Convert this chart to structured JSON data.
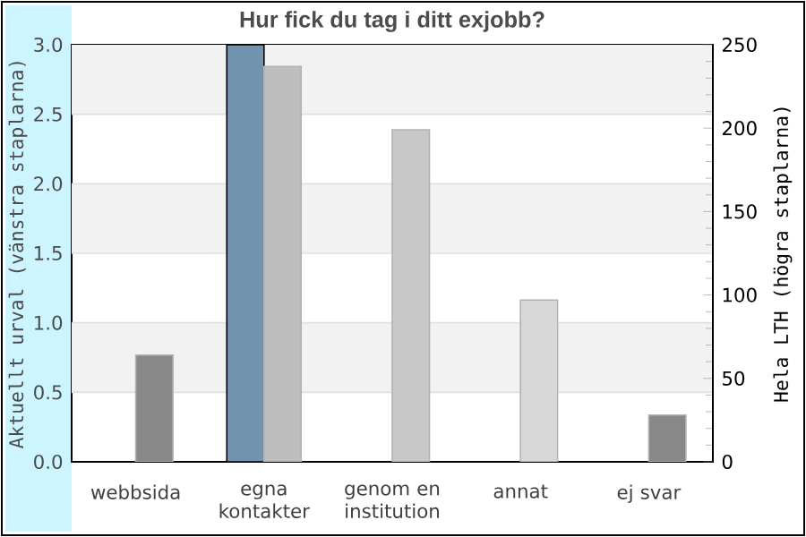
{
  "chart_data": {
    "type": "bar",
    "title": "Hur fick du tag i ditt exjobb?",
    "categories": [
      "webbsida",
      "egna kontakter",
      "genom en institution",
      "annat",
      "ej svar"
    ],
    "ylabel": "Aktuellt urval (vänstra staplarna)",
    "y2label": "Hela LTH (högra staplarna)",
    "ylim": [
      0,
      3
    ],
    "yticks": [
      {
        "value": 0,
        "label": "0.0"
      },
      {
        "value": 0.5,
        "label": "0.5"
      },
      {
        "value": 1,
        "label": "1.0"
      },
      {
        "value": 1.5,
        "label": "1.5"
      },
      {
        "value": 2,
        "label": "2.0"
      },
      {
        "value": 2.5,
        "label": "2.5"
      },
      {
        "value": 3,
        "label": "3.0"
      }
    ],
    "y2lim": [
      0,
      250
    ],
    "y2ticks": [
      0,
      50,
      100,
      150,
      200,
      250
    ],
    "grid": "y",
    "series": [
      {
        "values": [
          0,
          3,
          0,
          0,
          0
        ],
        "color": "#7393ae",
        "axis": "y"
      },
      {
        "values": [
          64,
          237,
          199,
          97,
          28
        ],
        "colors": [
          "#888888",
          "#bebebe",
          "#c8c8c8",
          "#d8d8d8",
          "#888888"
        ],
        "axis": "y2"
      }
    ]
  }
}
